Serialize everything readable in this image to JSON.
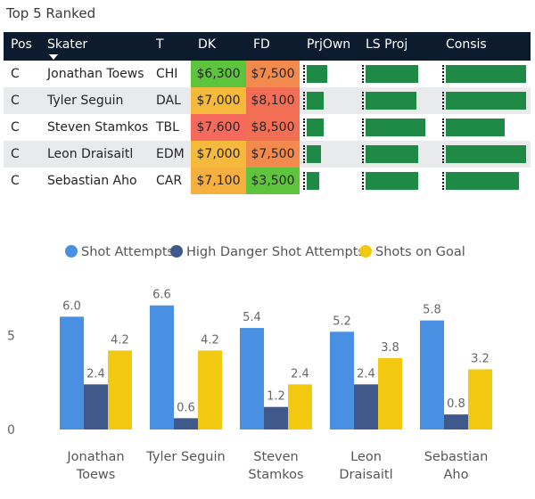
{
  "title": "Top 5 Ranked",
  "table": {
    "headers": [
      "Pos",
      "Skater",
      "T",
      "DK",
      "FD",
      "PrjOwn",
      "LS Proj",
      "Consis"
    ],
    "rows": [
      {
        "pos": "C",
        "skater": "Jonathan Toews",
        "team": "CHI",
        "dk": "$6,300",
        "fd": "$7,500",
        "dk_color": "#5ec33d",
        "fd_color": "#f28a4e",
        "prj_own": 0.4,
        "ls_proj": 0.72,
        "consis": 0.96
      },
      {
        "pos": "C",
        "skater": "Tyler Seguin",
        "team": "DAL",
        "dk": "$7,000",
        "fd": "$8,100",
        "dk_color": "#f5b93b",
        "fd_color": "#f26e55",
        "prj_own": 0.33,
        "ls_proj": 0.7,
        "consis": 0.96
      },
      {
        "pos": "C",
        "skater": "Steven Stamkos",
        "team": "TBL",
        "dk": "$7,600",
        "fd": "$8,500",
        "dk_color": "#f56a5d",
        "fd_color": "#f26e55",
        "prj_own": 0.33,
        "ls_proj": 0.82,
        "consis": 0.7
      },
      {
        "pos": "C",
        "skater": "Leon Draisaitl",
        "team": "EDM",
        "dk": "$7,000",
        "fd": "$7,500",
        "dk_color": "#f5b93b",
        "fd_color": "#f28a4e",
        "prj_own": 0.27,
        "ls_proj": 0.72,
        "consis": 0.96
      },
      {
        "pos": "C",
        "skater": "Sebastian Aho",
        "team": "CAR",
        "dk": "$7,100",
        "fd": "$3,500",
        "dk_color": "#f5b040",
        "fd_color": "#5ec33d",
        "prj_own": 0.24,
        "ls_proj": 0.72,
        "consis": 0.87
      }
    ]
  },
  "chart_data": {
    "type": "bar",
    "categories": [
      [
        "Jonathan",
        "Toews"
      ],
      [
        "Tyler Seguin"
      ],
      [
        "Steven",
        "Stamkos"
      ],
      [
        "Leon",
        "Draisaitl"
      ],
      [
        "Sebastian",
        "Aho"
      ]
    ],
    "series": [
      {
        "name": "Shot Attempts",
        "color": "#4a90e2",
        "values": [
          6.0,
          6.6,
          5.4,
          5.2,
          5.8
        ],
        "labels": [
          "6.0",
          "6.6",
          "5.4",
          "5.2",
          "5.8"
        ]
      },
      {
        "name": "High Danger Shot Attempts",
        "color": "#3f5a8a",
        "values": [
          2.4,
          0.6,
          1.2,
          2.4,
          0.8
        ],
        "labels": [
          "2.4",
          "0.6",
          "1.2",
          "2.4",
          "0.8"
        ]
      },
      {
        "name": "Shots on Goal",
        "color": "#f2c811",
        "values": [
          4.2,
          4.2,
          2.4,
          3.8,
          3.2
        ],
        "labels": [
          "4.2",
          "4.2",
          "2.4",
          "3.8",
          "3.2"
        ]
      }
    ],
    "yticks": [
      0,
      5
    ],
    "ylim": [
      0,
      7
    ],
    "legend_position": "top-center"
  }
}
